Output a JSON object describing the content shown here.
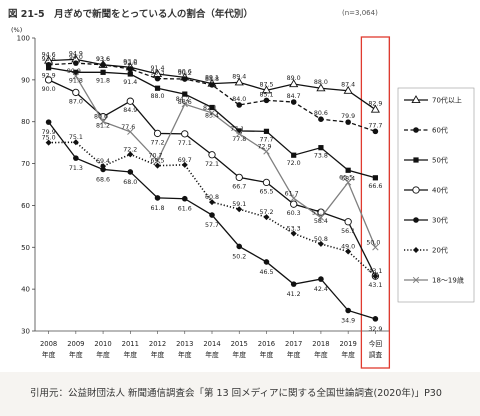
{
  "page": {
    "title": "図 21-5　月ぎめで新聞をとっている人の割合（年代別）",
    "note": "(n=3,064)",
    "source": "引用元：公益財団法人 新聞通信調査会「第 13 回メディアに関する全国世論調査(2020年)」P30"
  },
  "colors": {
    "highlight_box": "#e03a2e",
    "line": "#111111",
    "gray_line": "#7f7f7f",
    "footer_bg": "#f6f4f1"
  },
  "chart_data": {
    "type": "line",
    "ylabel": "(%)",
    "ylim": [
      30,
      100
    ],
    "yticks": [
      30,
      40,
      50,
      60,
      70,
      80,
      90,
      100
    ],
    "categories": [
      "2008\n年度",
      "2009\n年度",
      "2010\n年度",
      "2011\n年度",
      "2012\n年度",
      "2013\n年度",
      "2014\n年度",
      "2015\n年度",
      "2016\n年度",
      "2017\n年度",
      "2018\n年度",
      "2019\n年度",
      "今回\n調査"
    ],
    "highlight_category": "今回\n調査",
    "series": [
      {
        "name": "70代以上",
        "marker": "triangle-open",
        "dash": "solid",
        "gray": false,
        "values": [
          94.6,
          94.9,
          93.6,
          93.0,
          91.4,
          90.6,
          89.1,
          89.4,
          87.5,
          89.0,
          88.0,
          87.4,
          82.9
        ]
      },
      {
        "name": "60代",
        "marker": "circle-filled",
        "dash": "dashed",
        "gray": false,
        "values": [
          93.6,
          94.0,
          93.6,
          92.6,
          90.3,
          90.2,
          88.8,
          84.0,
          85.1,
          84.7,
          80.6,
          79.9,
          77.7
        ]
      },
      {
        "name": "50代",
        "marker": "square-filled",
        "dash": "solid",
        "gray": false,
        "values": [
          92.9,
          91.8,
          91.8,
          91.4,
          88.0,
          86.6,
          83.4,
          77.8,
          77.7,
          72.0,
          73.8,
          68.4,
          66.6
        ]
      },
      {
        "name": "40代",
        "marker": "circle-open",
        "dash": "solid",
        "gray": false,
        "values": [
          90.0,
          87.0,
          81.2,
          84.9,
          77.2,
          77.1,
          72.1,
          66.7,
          65.5,
          60.3,
          58.4,
          56.1,
          43.1
        ]
      },
      {
        "name": "30代",
        "marker": "circle-filled",
        "dash": "solid",
        "gray": false,
        "values": [
          79.9,
          71.3,
          68.6,
          68.0,
          61.8,
          61.6,
          57.7,
          50.2,
          46.5,
          41.2,
          42.4,
          34.9,
          32.9
        ]
      },
      {
        "name": "20代",
        "marker": "diamond-filled",
        "dash": "dotted",
        "gray": false,
        "values": [
          75.0,
          75.1,
          69.4,
          72.2,
          69.5,
          69.7,
          60.8,
          59.1,
          57.2,
          53.3,
          50.8,
          49.0,
          43.1
        ]
      },
      {
        "name": "18～19歳",
        "marker": "x",
        "dash": "solid",
        "gray": true,
        "values": [
          null,
          90.9,
          80.0,
          77.6,
          70.7,
          84.2,
          82.1,
          77.1,
          72.9,
          61.7,
          57.1,
          65.5,
          50.0
        ]
      }
    ],
    "point_labels": [
      {
        "series": "70代以上",
        "values": [
          "94.6",
          "94.9",
          "93.6",
          "93.0",
          "91.4",
          "90.6",
          "89.1",
          "89.4",
          "87.5",
          "89.0",
          "88.0",
          "87.4",
          "82.9"
        ]
      },
      {
        "series": "60代",
        "values": [
          "93.6",
          "94.0",
          "93.6",
          "92.6",
          "90.3",
          "90.2",
          "88.8",
          "84.0",
          "85.1",
          "84.7",
          "80.6",
          "79.9",
          "77.7"
        ]
      },
      {
        "series": "50代",
        "values": [
          "92.9",
          "91.8",
          "91.8",
          "91.4",
          "88.0",
          "86.6",
          "83.4",
          "77.8",
          "77.7",
          "72.0",
          "73.8",
          "68.4",
          "66.6"
        ]
      },
      {
        "series": "40代",
        "values": [
          "90.0",
          "87.0",
          "81.2",
          "84.9",
          "77.2",
          "77.1",
          "72.1",
          "66.7",
          "65.5",
          "60.3",
          "58.4",
          "56.1",
          "43.1"
        ]
      },
      {
        "series": "30代",
        "values": [
          "79.9",
          "71.3",
          "68.6",
          "68.0",
          "61.8",
          "61.6",
          "57.7",
          "50.2",
          "46.5",
          "41.2",
          "42.4",
          "34.9",
          "32.9"
        ]
      },
      {
        "series": "20代",
        "values": [
          "75.0",
          "75.1",
          "69.4",
          "72.2",
          "69.5",
          "69.7",
          "60.8",
          "59.1",
          "57.2",
          "53.3",
          "50.8",
          "49.0",
          "43.1"
        ]
      },
      {
        "series": "18～19歳",
        "values": [
          "",
          "90.9",
          "80.0",
          "77.6",
          "70.7",
          "84.2",
          "82.1",
          "77.1",
          "72.9",
          "61.7",
          "57.1",
          "65.5",
          "50.0"
        ]
      }
    ],
    "legend_position": "right",
    "grid": false
  }
}
